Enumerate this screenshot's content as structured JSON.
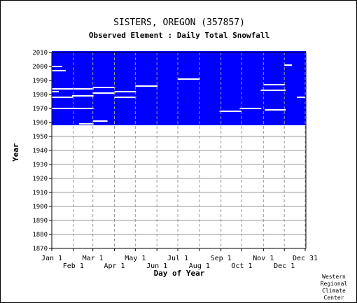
{
  "title": "SISTERS, OREGON   (357857)",
  "subtitle": "Observed Element : Daily Total Snowfall",
  "credit": [
    "Western",
    "Regional",
    "Climate",
    "Center"
  ],
  "chart_data": {
    "type": "heatmap",
    "description_of_marks": "availability",
    "xlabel": "Day of Year",
    "ylabel": "Year",
    "xlim": [
      1,
      366
    ],
    "ylim": [
      1870,
      2010
    ],
    "grid": true,
    "x_ticks_top": [
      {
        "label": "Jan 1",
        "day": 1
      },
      {
        "label": "Mar 1",
        "day": 60
      },
      {
        "label": "May 1",
        "day": 121
      },
      {
        "label": "Jul 1",
        "day": 182
      },
      {
        "label": "Sep 1",
        "day": 244
      },
      {
        "label": "Nov 1",
        "day": 305
      },
      {
        "label": "Dec 31",
        "day": 365
      }
    ],
    "x_ticks_bottom": [
      {
        "label": "Feb 1",
        "day": 32
      },
      {
        "label": "Apr 1",
        "day": 91
      },
      {
        "label": "Jun 1",
        "day": 152
      },
      {
        "label": "Aug 1",
        "day": 213
      },
      {
        "label": "Oct 1",
        "day": 274
      },
      {
        "label": "Dec 1",
        "day": 335
      }
    ],
    "y_ticks": [
      1870,
      1880,
      1890,
      1900,
      1910,
      1920,
      1930,
      1940,
      1950,
      1960,
      1970,
      1980,
      1990,
      2000,
      2010
    ],
    "data_color": "#0000ff",
    "record_years": [
      1958,
      2010
    ],
    "gaps": [
      {
        "year": 1961,
        "start": 60,
        "end": 80
      },
      {
        "year": 1959,
        "start": 40,
        "end": 60
      },
      {
        "year": 1968,
        "start": 242,
        "end": 272
      },
      {
        "year": 1969,
        "start": 307,
        "end": 336
      },
      {
        "year": 1970,
        "start": 1,
        "end": 60
      },
      {
        "year": 1970,
        "start": 271,
        "end": 301
      },
      {
        "year": 1978,
        "start": 1,
        "end": 30
      },
      {
        "year": 1978,
        "start": 91,
        "end": 121
      },
      {
        "year": 1978,
        "start": 353,
        "end": 365
      },
      {
        "year": 1979,
        "start": 30,
        "end": 60
      },
      {
        "year": 1980,
        "start": 365,
        "end": 365
      },
      {
        "year": 1981,
        "start": 60,
        "end": 91
      },
      {
        "year": 1982,
        "start": 91,
        "end": 121
      },
      {
        "year": 1982,
        "start": 1,
        "end": 10
      },
      {
        "year": 1983,
        "start": 301,
        "end": 336
      },
      {
        "year": 1984,
        "start": 1,
        "end": 60
      },
      {
        "year": 1985,
        "start": 60,
        "end": 91
      },
      {
        "year": 1986,
        "start": 121,
        "end": 152
      },
      {
        "year": 1987,
        "start": 305,
        "end": 335
      },
      {
        "year": 1991,
        "start": 182,
        "end": 213
      },
      {
        "year": 1997,
        "start": 1,
        "end": 20
      },
      {
        "year": 2000,
        "start": 1,
        "end": 15
      },
      {
        "year": 2001,
        "start": 335,
        "end": 345
      }
    ]
  }
}
